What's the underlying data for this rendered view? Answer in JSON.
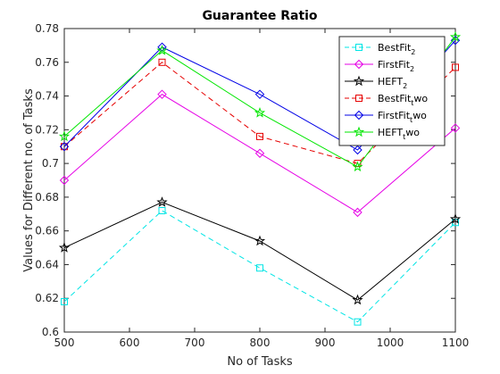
{
  "chart_data": {
    "type": "line",
    "title": "Guarantee Ratio",
    "xlabel": "No of Tasks",
    "ylabel": "Values for Different no. of Tasks",
    "xlim": [
      500,
      1100
    ],
    "ylim": [
      0.6,
      0.78
    ],
    "xticks": [
      500,
      600,
      700,
      800,
      900,
      1000,
      1100
    ],
    "yticks": [
      0.6,
      0.62,
      0.64,
      0.66,
      0.68,
      0.7,
      0.72,
      0.74,
      0.76,
      0.78
    ],
    "xtick_labels": [
      "500",
      "600",
      "700",
      "800",
      "900",
      "1000",
      "1100"
    ],
    "ytick_labels": [
      "0.6",
      "0.62",
      "0.64",
      "0.66",
      "0.68",
      "0.7",
      "0.72",
      "0.74",
      "0.76",
      "0.78"
    ],
    "x": [
      500,
      650,
      800,
      950,
      1100
    ],
    "grid": false,
    "legend_position": "top-right",
    "series": [
      {
        "name": "BestFit",
        "sub": "2",
        "suffix": "",
        "values": [
          0.618,
          0.672,
          0.638,
          0.606,
          0.665
        ],
        "color": "#00e5e5",
        "dash": "dashed",
        "marker": "square"
      },
      {
        "name": "FirstFit",
        "sub": "2",
        "suffix": "",
        "values": [
          0.69,
          0.741,
          0.706,
          0.671,
          0.721
        ],
        "color": "#e600e6",
        "dash": "solid",
        "marker": "diamond"
      },
      {
        "name": "HEFT",
        "sub": "2",
        "suffix": "",
        "values": [
          0.65,
          0.677,
          0.654,
          0.619,
          0.667
        ],
        "color": "#000000",
        "dash": "solid",
        "marker": "star"
      },
      {
        "name": "BestFit",
        "sub": "t",
        "suffix": "wo",
        "values": [
          0.71,
          0.76,
          0.716,
          0.7,
          0.757
        ],
        "color": "#e60000",
        "dash": "dashed",
        "marker": "square"
      },
      {
        "name": "FirstFit",
        "sub": "t",
        "suffix": "wo",
        "values": [
          0.71,
          0.769,
          0.741,
          0.708,
          0.773
        ],
        "color": "#0000e6",
        "dash": "solid",
        "marker": "diamond"
      },
      {
        "name": "HEFT",
        "sub": "t",
        "suffix": "wo",
        "values": [
          0.716,
          0.767,
          0.73,
          0.698,
          0.775
        ],
        "color": "#00e600",
        "dash": "solid",
        "marker": "star"
      }
    ]
  }
}
